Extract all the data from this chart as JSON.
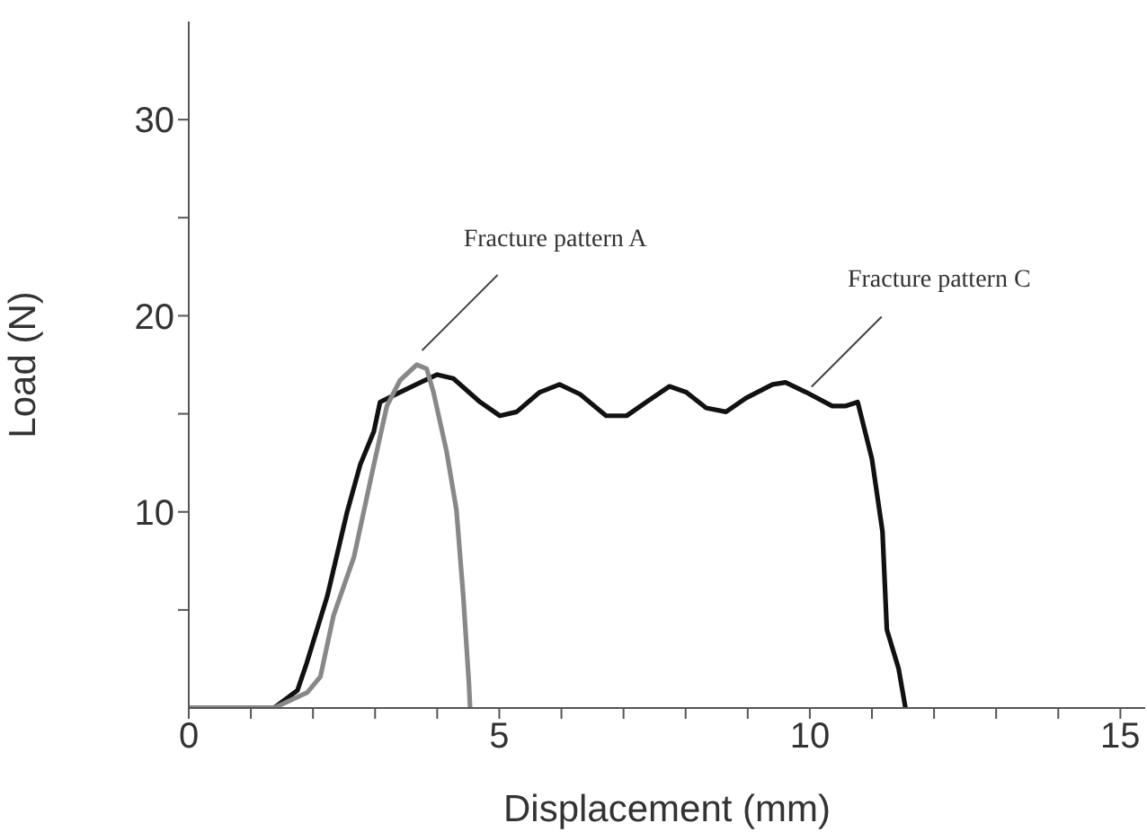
{
  "chart_data": {
    "type": "line",
    "xlabel": "Displacement (mm)",
    "ylabel": "Load (N)",
    "xlim": [
      0,
      15.4
    ],
    "ylim": [
      0,
      35
    ],
    "xticks": [
      0,
      {
        "value": 1,
        "label": null
      },
      {
        "value": 2,
        "label": null
      },
      {
        "value": 3,
        "label": null
      },
      {
        "value": 4,
        "label": null
      },
      5,
      {
        "value": 6,
        "label": null
      },
      {
        "value": 7,
        "label": null
      },
      {
        "value": 8,
        "label": null
      },
      {
        "value": 9,
        "label": null
      },
      10,
      {
        "value": 11,
        "label": null
      },
      {
        "value": 12,
        "label": null
      },
      {
        "value": 13,
        "label": null
      },
      {
        "value": 14,
        "label": null
      },
      15
    ],
    "yticks": [
      {
        "value": 5,
        "label": null
      },
      10,
      {
        "value": 15,
        "label": null
      },
      20,
      {
        "value": 25,
        "label": null
      },
      30
    ],
    "grid": false,
    "legend": false,
    "marker": "none",
    "line_style": "solid",
    "series": [
      {
        "color": "#111111",
        "x": [
          0,
          1.37,
          1.75,
          1.9,
          2.23,
          2.55,
          2.76,
          2.98,
          3.08,
          3.4,
          3.73,
          4.0,
          4.26,
          4.69,
          5.01,
          5.28,
          5.65,
          5.97,
          6.3,
          6.72,
          7.05,
          7.37,
          7.74,
          8.01,
          8.33,
          8.65,
          8.97,
          9.4,
          9.61,
          9.94,
          10.36,
          10.58,
          10.77,
          11.0,
          11.17,
          11.24,
          11.43,
          11.54
        ],
        "values": [
          0,
          0,
          0.9,
          2.3,
          5.7,
          10,
          12.4,
          14.1,
          15.6,
          16.1,
          16.6,
          17.0,
          16.8,
          15.6,
          14.9,
          15.1,
          16.1,
          16.5,
          16.0,
          14.9,
          14.9,
          15.6,
          16.4,
          16.1,
          15.3,
          15.1,
          15.8,
          16.5,
          16.6,
          16.1,
          15.4,
          15.4,
          15.6,
          12.7,
          9.0,
          4.0,
          2.0,
          0
        ]
      },
      {
        "color": "#888888",
        "x": [
          0,
          1.37,
          1.91,
          2.12,
          2.33,
          2.66,
          2.98,
          3.19,
          3.4,
          3.67,
          3.83,
          3.94,
          4.15,
          4.31,
          4.42,
          4.51,
          4.53
        ],
        "values": [
          0,
          0,
          0.8,
          1.6,
          4.7,
          7.7,
          12.4,
          15.4,
          16.7,
          17.5,
          17.3,
          16.1,
          13.1,
          10.1,
          5.7,
          1.3,
          0
        ]
      }
    ],
    "annotations": [
      {
        "text": "Fracture pattern A",
        "x": 3.67,
        "y": 17.5
      },
      {
        "text": "Fracture pattern C",
        "x": 9.94,
        "y": 16.1
      }
    ]
  }
}
